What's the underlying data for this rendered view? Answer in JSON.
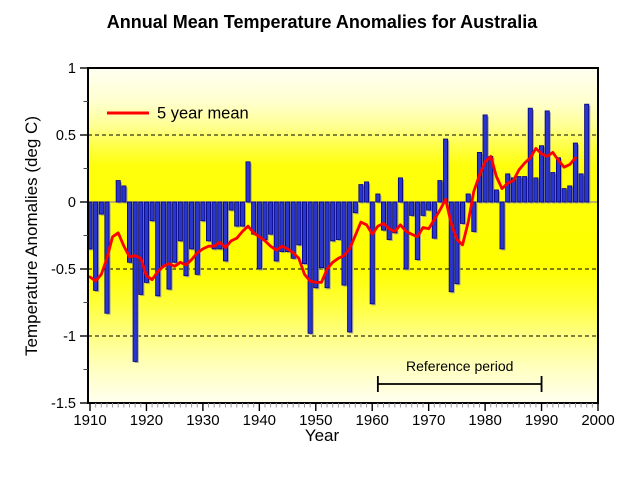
{
  "title": "Annual Mean Temperature Anomalies for Australia",
  "legend": {
    "label": "5 year mean",
    "color": "#FF0000"
  },
  "annotation": {
    "label": "Reference period",
    "start_year": 1961,
    "end_year": 1990
  },
  "colors": {
    "canvas_background": "#FFFFFF",
    "bar_fill": "#2A35CC",
    "bar_edge": "#00007B",
    "bar_shadow": "#999999",
    "mean_line": "#FF0000",
    "dashed_gridline": "#000000",
    "zero_line": "#8C8C8C",
    "frame": "#000000",
    "minor_tick": "#999999",
    "plot_gradient_top_to_bottom": [
      "#FFFFF2",
      "#FFFFCF",
      "#FFFF96",
      "#FFFF4A",
      "#FFFF0D",
      "#FFFF00",
      "#FFFF38",
      "#FFFF85",
      "#FFFFC2",
      "#FFFFEF"
    ]
  },
  "chart_data": {
    "type": "bar",
    "title": "Annual Mean Temperature Anomalies for Australia",
    "xlabel": "Year",
    "ylabel": "Temperature Anomalies (deg C)",
    "xlim": [
      1910,
      2000
    ],
    "ylim": [
      -1.5,
      1
    ],
    "grid": "horizontal dashed lines at +0.5, -0.5, -1.0; solid grey line at 0",
    "legend_position": "inside top-left",
    "x_tick_labels": [
      "1910",
      "1920",
      "1930",
      "1940",
      "1950",
      "1960",
      "1970",
      "1980",
      "1990",
      "2000"
    ],
    "x_tick_values": [
      1910,
      1920,
      1930,
      1940,
      1950,
      1960,
      1970,
      1980,
      1990,
      2000
    ],
    "x_minor_step": 1,
    "y_tick_labels": [
      "1",
      "0.5",
      "0",
      "-0.5",
      "-1",
      "-1.5"
    ],
    "y_tick_values": [
      1,
      0.5,
      0,
      -0.5,
      -1,
      -1.5
    ],
    "y_minor_step": 0.25,
    "dashed_gridlines": [
      0.5,
      -0.5,
      -1
    ],
    "zero_line": 0,
    "years": [
      1910,
      1911,
      1912,
      1913,
      1914,
      1915,
      1916,
      1917,
      1918,
      1919,
      1920,
      1921,
      1922,
      1923,
      1924,
      1925,
      1926,
      1927,
      1928,
      1929,
      1930,
      1931,
      1932,
      1933,
      1934,
      1935,
      1936,
      1937,
      1938,
      1939,
      1940,
      1941,
      1942,
      1943,
      1944,
      1945,
      1946,
      1947,
      1948,
      1949,
      1950,
      1951,
      1952,
      1953,
      1954,
      1955,
      1956,
      1957,
      1958,
      1959,
      1960,
      1961,
      1962,
      1963,
      1964,
      1965,
      1966,
      1967,
      1968,
      1969,
      1970,
      1971,
      1972,
      1973,
      1974,
      1975,
      1976,
      1977,
      1978,
      1979,
      1980,
      1981,
      1982,
      1983,
      1984,
      1985,
      1986,
      1987,
      1988,
      1989,
      1990,
      1991,
      1992,
      1993,
      1994,
      1995,
      1996,
      1997,
      1998
    ],
    "series": [
      {
        "name": "Annual mean temperature anomaly",
        "type": "bar",
        "color": "#2A35CC",
        "start_year": 1910,
        "values": [
          -0.35,
          -0.66,
          -0.09,
          -0.83,
          0.0,
          0.16,
          0.12,
          -0.45,
          -1.19,
          -0.69,
          -0.6,
          -0.14,
          -0.7,
          -0.48,
          -0.65,
          -0.45,
          -0.29,
          -0.55,
          -0.35,
          -0.54,
          -0.14,
          -0.29,
          -0.35,
          -0.35,
          -0.44,
          -0.06,
          -0.18,
          -0.18,
          0.3,
          -0.24,
          -0.5,
          -0.28,
          -0.24,
          -0.44,
          -0.37,
          -0.37,
          -0.42,
          -0.32,
          -0.46,
          -0.98,
          -0.64,
          -0.49,
          -0.64,
          -0.29,
          -0.28,
          -0.62,
          -0.97,
          -0.08,
          0.13,
          0.15,
          -0.76,
          0.06,
          -0.21,
          -0.28,
          -0.23,
          0.18,
          -0.5,
          -0.1,
          -0.43,
          -0.1,
          -0.06,
          -0.27,
          0.16,
          0.47,
          -0.67,
          -0.61,
          -0.16,
          0.06,
          -0.22,
          0.37,
          0.65,
          0.34,
          0.09,
          -0.35,
          0.21,
          0.18,
          0.19,
          0.19,
          0.7,
          0.18,
          0.42,
          0.68,
          0.22,
          0.33,
          0.1,
          0.12,
          0.44,
          0.21,
          0.73
        ]
      },
      {
        "name": "5 year mean",
        "type": "line",
        "color": "#FF0000",
        "start_year": 1910,
        "values": [
          -0.56,
          -0.59,
          -0.54,
          -0.42,
          -0.26,
          -0.23,
          -0.33,
          -0.41,
          -0.4,
          -0.42,
          -0.55,
          -0.58,
          -0.52,
          -0.48,
          -0.46,
          -0.48,
          -0.45,
          -0.47,
          -0.43,
          -0.38,
          -0.35,
          -0.33,
          -0.33,
          -0.3,
          -0.34,
          -0.29,
          -0.27,
          -0.22,
          -0.18,
          -0.23,
          -0.26,
          -0.29,
          -0.33,
          -0.36,
          -0.33,
          -0.35,
          -0.38,
          -0.42,
          -0.54,
          -0.59,
          -0.6,
          -0.6,
          -0.5,
          -0.45,
          -0.42,
          -0.4,
          -0.35,
          -0.25,
          -0.15,
          -0.17,
          -0.24,
          -0.18,
          -0.16,
          -0.2,
          -0.22,
          -0.17,
          -0.22,
          -0.24,
          -0.26,
          -0.19,
          -0.2,
          -0.13,
          -0.06,
          0.02,
          -0.16,
          -0.28,
          -0.32,
          -0.15,
          0.08,
          0.2,
          0.3,
          0.34,
          0.19,
          0.1,
          0.14,
          0.16,
          0.24,
          0.29,
          0.33,
          0.4,
          0.36,
          0.34,
          0.37,
          0.31,
          0.26,
          0.28,
          0.33
        ]
      }
    ]
  }
}
